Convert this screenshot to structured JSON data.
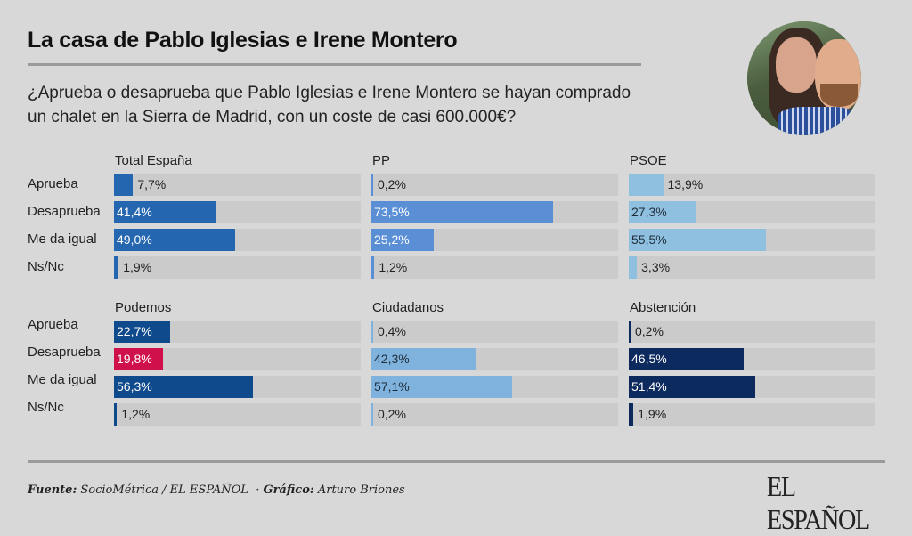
{
  "header": {
    "title": "La casa de Pablo Iglesias e Irene Montero",
    "question": "¿Aprueba o desaprueba que Pablo Iglesias e Irene Montero se hayan comprado un chalet en la Sierra de Madrid, con un coste de casi 600.000€?"
  },
  "photo": {
    "icon": "portrait-photo"
  },
  "chart_data": {
    "type": "bar",
    "orientation": "horizontal",
    "title": "La casa de Pablo Iglesias e Irene Montero",
    "subtitle": "¿Aprueba o desaprueba que Pablo Iglesias e Irene Montero se hayan comprado un chalet en la Sierra de Madrid, con un coste de casi 600.000€?",
    "categories": [
      "Aprueba",
      "Desaprueba",
      "Me da igual",
      "Ns/Nc"
    ],
    "xlim": [
      0,
      100
    ],
    "unit": "%",
    "grid": false,
    "panels": [
      {
        "name": "Total España",
        "values": [
          7.7,
          41.4,
          49.0,
          1.9
        ],
        "labels": [
          "7,7%",
          "41,4%",
          "49,0%",
          "1,9%"
        ],
        "colors": [
          "#2466b0",
          "#2466b0",
          "#2466b0",
          "#2466b0"
        ]
      },
      {
        "name": "PP",
        "values": [
          0.2,
          73.5,
          25.2,
          1.2
        ],
        "labels": [
          "0,2%",
          "73,5%",
          "25,2%",
          "1,2%"
        ],
        "colors": [
          "#5a8fd6",
          "#5a8fd6",
          "#5a8fd6",
          "#5a8fd6"
        ]
      },
      {
        "name": "PSOE",
        "values": [
          13.9,
          27.3,
          55.5,
          3.3
        ],
        "labels": [
          "13,9%",
          "27,3%",
          "55,5%",
          "3,3%"
        ],
        "colors": [
          "#8fc0e0",
          "#8fc0e0",
          "#8fc0e0",
          "#8fc0e0"
        ]
      },
      {
        "name": "Podemos",
        "values": [
          22.7,
          19.8,
          56.3,
          1.2
        ],
        "labels": [
          "22,7%",
          "19,8%",
          "56,3%",
          "1,2%"
        ],
        "colors": [
          "#0f4a8c",
          "#d0104a",
          "#0f4a8c",
          "#0f4a8c"
        ]
      },
      {
        "name": "Ciudadanos",
        "values": [
          0.4,
          42.3,
          57.1,
          0.2
        ],
        "labels": [
          "0,4%",
          "42,3%",
          "57,1%",
          "0,2%"
        ],
        "colors": [
          "#7fb2dc",
          "#7fb2dc",
          "#7fb2dc",
          "#7fb2dc"
        ]
      },
      {
        "name": "Abstención",
        "values": [
          0.2,
          46.5,
          51.4,
          1.9
        ],
        "labels": [
          "0,2%",
          "46,5%",
          "51,4%",
          "1,9%"
        ],
        "colors": [
          "#0c2a5e",
          "#0c2a5e",
          "#0c2a5e",
          "#0c2a5e"
        ]
      }
    ]
  },
  "footer": {
    "source_label": "Fuente:",
    "source_value": "SocioMétrica / EL ESPAÑOL",
    "separator": "·",
    "graphic_label": "Gráfico:",
    "graphic_value": "Arturo Briones",
    "logo": "EL ESPAÑOL"
  }
}
